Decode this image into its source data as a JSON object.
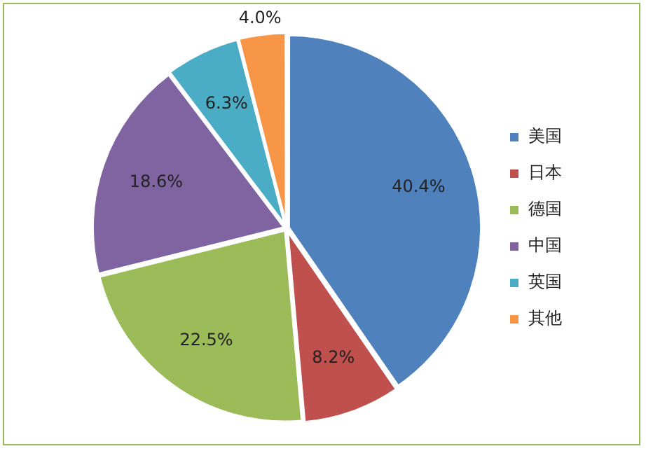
{
  "chart_data": {
    "type": "pie",
    "categories": [
      "美国",
      "日本",
      "德国",
      "中国",
      "英国",
      "其他"
    ],
    "values": [
      40.4,
      8.2,
      22.5,
      18.6,
      6.3,
      4.0
    ],
    "colors": [
      "#4f81bd",
      "#c0504d",
      "#9bbb59",
      "#8064a2",
      "#4bacc6",
      "#f79646"
    ],
    "value_labels": [
      "40.4%",
      "8.2%",
      "22.5%",
      "18.6%",
      "6.3%",
      "4.0%"
    ],
    "legend": "right"
  }
}
